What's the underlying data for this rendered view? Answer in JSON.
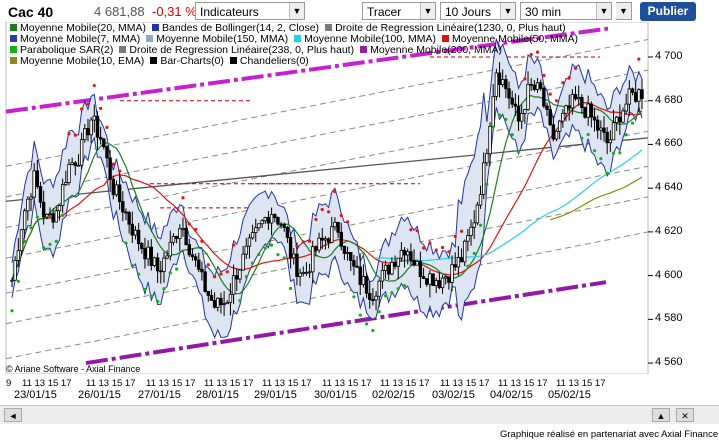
{
  "toolbar": {
    "instrument": "Cac 40",
    "price": "4 681,88",
    "change": "-0,31 %",
    "indicators_label": "Indicateurs",
    "draw_label": "Tracer",
    "period_label": "10 Jours",
    "interval_label": "30 min",
    "publish_label": "Publier"
  },
  "legend": {
    "rows": [
      [
        {
          "label": "Moyenne Mobile(20, MMA)",
          "color": "#1b7f1b"
        },
        {
          "label": "Bandes de Bollinger(14, 2, Close)",
          "color": "#2035a0"
        },
        {
          "label": "Droite de Regression Linéaire(1230, 0, Plus haut)",
          "color": "#7a7a7a"
        }
      ],
      [
        {
          "label": "Moyenne Mobile(7, MMA)",
          "color": "#2e3ca8"
        },
        {
          "label": "Moyenne Mobile(150, MMA)",
          "color": "#8fa8c8"
        },
        {
          "label": "Moyenne Mobile(100, MMA)",
          "color": "#22d3e6"
        },
        {
          "label": "Moyenne Mobile(50, MMA)",
          "color": "#e01212"
        }
      ],
      [
        {
          "label": "Parabolique SAR(2)",
          "color": "#11b511"
        },
        {
          "label": "Droite de Regression Linéaire(238, 0, Plus haut)",
          "color": "#7a7a7a"
        },
        {
          "label": "Moyenne Mobile(200, MMA)",
          "color": "#9a1fa0"
        }
      ],
      [
        {
          "label": "Moyenne Mobile(10, EMA)",
          "color": "#8a8a10"
        },
        {
          "label": "Bar-Charts(0)",
          "color": "#000000"
        },
        {
          "label": "Chandeliers(0)",
          "color": "#000000"
        }
      ]
    ]
  },
  "copyright": "© Ariane Software - Axial Finance",
  "footer": "Graphique réalisé en partenariat avec Axial Finance",
  "colors": {
    "candle": "#000000",
    "bollinger_fill": "#dde4f2",
    "bollinger_line": "#2035a0",
    "sar": "#e81414",
    "sar_bull": "#14b014",
    "channel": "#c81fd0",
    "channel_lower": "#9318a8",
    "regression": "#555555",
    "ma50": "#e01212",
    "ma20": "#1b7f1b",
    "ma100": "#22d3e6",
    "ema10": "#8a8a10"
  },
  "chart_data": {
    "type": "candlestick",
    "title": "Cac 40",
    "ylim": [
      4555,
      4716
    ],
    "yticks": [
      4560,
      4580,
      4600,
      4620,
      4640,
      4660,
      4680,
      4700
    ],
    "ytick_labels": [
      "4 560",
      "4 580",
      "4 600",
      "4 620",
      "4 640",
      "4 660",
      "4 680",
      "4 700"
    ],
    "x_time_labels": [
      "9",
      "11 13 15 17",
      "11 13 15 17",
      "11 13 15 17",
      "11 13 15 17",
      "11 13 15 17",
      "11 13 15 17",
      "11 13 15 17",
      "11 13 15 17",
      "11 13 15 17",
      "11 13 15 17"
    ],
    "days": [
      "23/01/15",
      "26/01/15",
      "27/01/15",
      "28/01/15",
      "29/01/15",
      "30/01/15",
      "02/02/15",
      "03/02/15",
      "04/02/15",
      "05/02/15"
    ],
    "series": [
      {
        "name": "Cours",
        "values": [
          4598,
          4628,
          4645,
          4625,
          4630,
          4650,
          4655,
          4672,
          4662,
          4640,
          4630,
          4618,
          4610,
          4602,
          4612,
          4625,
          4610,
          4596,
          4586,
          4588,
          4602,
          4612,
          4622,
          4630,
          4624,
          4606,
          4600,
          4612,
          4618,
          4622,
          4606,
          4598,
          4592,
          4600,
          4608,
          4614,
          4604,
          4600,
          4598,
          4602,
          4608,
          4624,
          4650,
          4695,
          4685,
          4670,
          4686,
          4684,
          4662,
          4672,
          4680,
          4676,
          4668,
          4660,
          4674,
          4682,
          4684
        ]
      }
    ]
  }
}
